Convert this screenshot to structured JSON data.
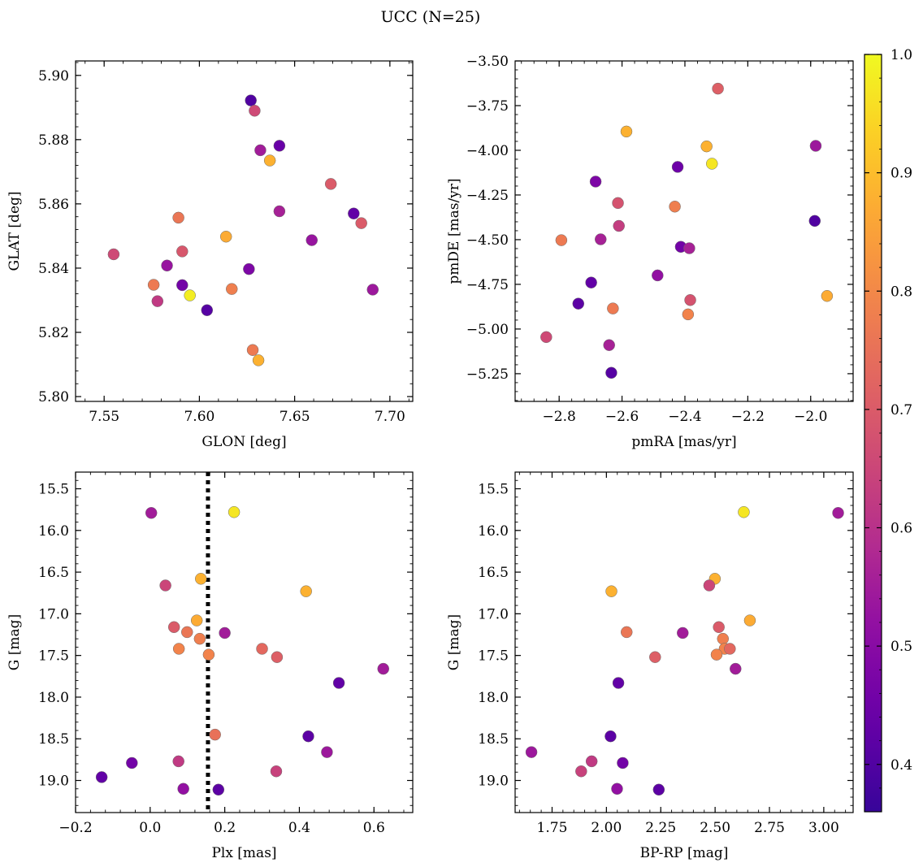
{
  "figure": {
    "suptitle": "UCC (N=25)"
  },
  "colorbar": {
    "colormap": "plasma",
    "range": [
      0.36,
      1.0
    ],
    "ticks": [
      0.4,
      0.5,
      0.6,
      0.7,
      0.8,
      0.9,
      1.0
    ],
    "tick_labels": [
      "0.4",
      "0.5",
      "0.6",
      "0.7",
      "0.8",
      "0.9",
      "1.0"
    ]
  },
  "chart_data": [
    {
      "type": "scatter",
      "id": "glon-glat",
      "xlabel": "GLON [deg]",
      "ylabel": "GLAT [deg]",
      "xlim": [
        7.535,
        7.712
      ],
      "ylim": [
        5.7985,
        5.9045
      ],
      "xticks": [
        7.55,
        7.6,
        7.65,
        7.7
      ],
      "xtick_labels": [
        "7.55",
        "7.60",
        "7.65",
        "7.70"
      ],
      "yticks": [
        5.8,
        5.82,
        5.84,
        5.86,
        5.88,
        5.9
      ],
      "ytick_labels": [
        "5.80",
        "5.82",
        "5.84",
        "5.86",
        "5.88",
        "5.90"
      ],
      "points": [
        {
          "x": 7.627,
          "y": 5.8922,
          "c": 0.4
        },
        {
          "x": 7.629,
          "y": 5.889,
          "c": 0.66
        },
        {
          "x": 7.642,
          "y": 5.8781,
          "c": 0.44
        },
        {
          "x": 7.632,
          "y": 5.8767,
          "c": 0.55
        },
        {
          "x": 7.637,
          "y": 5.8735,
          "c": 0.88
        },
        {
          "x": 7.669,
          "y": 5.8662,
          "c": 0.7
        },
        {
          "x": 7.642,
          "y": 5.8577,
          "c": 0.56
        },
        {
          "x": 7.681,
          "y": 5.857,
          "c": 0.43
        },
        {
          "x": 7.589,
          "y": 5.8557,
          "c": 0.76
        },
        {
          "x": 7.685,
          "y": 5.854,
          "c": 0.7
        },
        {
          "x": 7.614,
          "y": 5.8498,
          "c": 0.87
        },
        {
          "x": 7.659,
          "y": 5.8487,
          "c": 0.53
        },
        {
          "x": 7.591,
          "y": 5.8452,
          "c": 0.69
        },
        {
          "x": 7.555,
          "y": 5.8443,
          "c": 0.66
        },
        {
          "x": 7.583,
          "y": 5.8408,
          "c": 0.53
        },
        {
          "x": 7.626,
          "y": 5.8397,
          "c": 0.48
        },
        {
          "x": 7.576,
          "y": 5.8348,
          "c": 0.77
        },
        {
          "x": 7.591,
          "y": 5.8347,
          "c": 0.46
        },
        {
          "x": 7.617,
          "y": 5.8335,
          "c": 0.78
        },
        {
          "x": 7.691,
          "y": 5.8333,
          "c": 0.54
        },
        {
          "x": 7.595,
          "y": 5.8315,
          "c": 0.98
        },
        {
          "x": 7.578,
          "y": 5.8297,
          "c": 0.62
        },
        {
          "x": 7.604,
          "y": 5.8269,
          "c": 0.41
        },
        {
          "x": 7.628,
          "y": 5.8145,
          "c": 0.77
        },
        {
          "x": 7.631,
          "y": 5.8113,
          "c": 0.88
        }
      ]
    },
    {
      "type": "scatter",
      "id": "pmra-pmde",
      "xlabel": "pmRA [mas/yr]",
      "ylabel": "pmDE [mas/yr]",
      "xlim": [
        -2.94,
        -1.865
      ],
      "ylim": [
        -5.405,
        -3.5
      ],
      "xticks": [
        -2.8,
        -2.6,
        -2.4,
        -2.2,
        -2.0
      ],
      "xtick_labels": [
        "−2.8",
        "−2.6",
        "−2.4",
        "−2.2",
        "−2.0"
      ],
      "yticks": [
        -5.25,
        -5.0,
        -4.75,
        -4.5,
        -4.25,
        -4.0,
        -3.75,
        -3.5
      ],
      "ytick_labels": [
        "−5.25",
        "−5.00",
        "−4.75",
        "−4.50",
        "−4.25",
        "−4.00",
        "−3.75",
        "−3.50"
      ],
      "points": [
        {
          "x": -2.295,
          "y": -3.655,
          "c": 0.71
        },
        {
          "x": -2.586,
          "y": -3.895,
          "c": 0.88
        },
        {
          "x": -2.331,
          "y": -3.978,
          "c": 0.88
        },
        {
          "x": -1.984,
          "y": -3.975,
          "c": 0.54
        },
        {
          "x": -2.314,
          "y": -4.075,
          "c": 0.97
        },
        {
          "x": -2.423,
          "y": -4.093,
          "c": 0.45
        },
        {
          "x": -2.684,
          "y": -4.175,
          "c": 0.48
        },
        {
          "x": -2.613,
          "y": -4.295,
          "c": 0.68
        },
        {
          "x": -2.432,
          "y": -4.315,
          "c": 0.78
        },
        {
          "x": -2.61,
          "y": -4.423,
          "c": 0.63
        },
        {
          "x": -1.987,
          "y": -4.395,
          "c": 0.4
        },
        {
          "x": -2.793,
          "y": -4.503,
          "c": 0.77
        },
        {
          "x": -2.668,
          "y": -4.498,
          "c": 0.56
        },
        {
          "x": -2.413,
          "y": -4.54,
          "c": 0.46
        },
        {
          "x": -2.386,
          "y": -4.548,
          "c": 0.56
        },
        {
          "x": -2.487,
          "y": -4.7,
          "c": 0.52
        },
        {
          "x": -2.698,
          "y": -4.74,
          "c": 0.43
        },
        {
          "x": -2.383,
          "y": -4.838,
          "c": 0.68
        },
        {
          "x": -1.948,
          "y": -4.815,
          "c": 0.87
        },
        {
          "x": -2.739,
          "y": -4.858,
          "c": 0.42
        },
        {
          "x": -2.629,
          "y": -4.885,
          "c": 0.77
        },
        {
          "x": -2.39,
          "y": -4.918,
          "c": 0.79
        },
        {
          "x": -2.841,
          "y": -5.045,
          "c": 0.66
        },
        {
          "x": -2.641,
          "y": -5.09,
          "c": 0.56
        },
        {
          "x": -2.634,
          "y": -5.245,
          "c": 0.41
        }
      ]
    },
    {
      "type": "scatter",
      "id": "plx-g",
      "xlabel": "Plx [mas]",
      "ylabel": "G [mag]",
      "xlim": [
        -0.2,
        0.704
      ],
      "ylim": [
        19.385,
        15.3
      ],
      "xticks": [
        -0.2,
        0.0,
        0.2,
        0.4,
        0.6
      ],
      "xtick_labels": [
        "−0.2",
        "0.0",
        "0.2",
        "0.4",
        "0.6"
      ],
      "yticks": [
        15.5,
        16.0,
        16.5,
        17.0,
        17.5,
        18.0,
        18.5,
        19.0
      ],
      "ytick_labels": [
        "15.5",
        "16.0",
        "16.5",
        "17.0",
        "17.5",
        "18.0",
        "18.5",
        "19.0"
      ],
      "vline": {
        "x": 0.155
      },
      "points": [
        {
          "x": 0.003,
          "y": 15.79,
          "c": 0.55
        },
        {
          "x": 0.225,
          "y": 15.78,
          "c": 0.97
        },
        {
          "x": 0.041,
          "y": 16.66,
          "c": 0.65
        },
        {
          "x": 0.136,
          "y": 16.58,
          "c": 0.88
        },
        {
          "x": 0.418,
          "y": 16.73,
          "c": 0.88
        },
        {
          "x": 0.125,
          "y": 17.08,
          "c": 0.87
        },
        {
          "x": 0.064,
          "y": 17.16,
          "c": 0.7
        },
        {
          "x": 0.099,
          "y": 17.22,
          "c": 0.76
        },
        {
          "x": 0.2,
          "y": 17.23,
          "c": 0.55
        },
        {
          "x": 0.133,
          "y": 17.3,
          "c": 0.78
        },
        {
          "x": 0.077,
          "y": 17.42,
          "c": 0.79
        },
        {
          "x": 0.3,
          "y": 17.42,
          "c": 0.73
        },
        {
          "x": 0.157,
          "y": 17.49,
          "c": 0.79
        },
        {
          "x": 0.34,
          "y": 17.52,
          "c": 0.71
        },
        {
          "x": 0.625,
          "y": 17.66,
          "c": 0.55
        },
        {
          "x": 0.506,
          "y": 17.83,
          "c": 0.43
        },
        {
          "x": 0.174,
          "y": 18.45,
          "c": 0.75
        },
        {
          "x": 0.424,
          "y": 18.47,
          "c": 0.42
        },
        {
          "x": 0.474,
          "y": 18.66,
          "c": 0.54
        },
        {
          "x": 0.076,
          "y": 18.77,
          "c": 0.62
        },
        {
          "x": -0.049,
          "y": 18.79,
          "c": 0.46
        },
        {
          "x": 0.338,
          "y": 18.89,
          "c": 0.64
        },
        {
          "x": -0.13,
          "y": 18.96,
          "c": 0.43
        },
        {
          "x": 0.089,
          "y": 19.1,
          "c": 0.52
        },
        {
          "x": 0.183,
          "y": 19.11,
          "c": 0.42
        }
      ]
    },
    {
      "type": "scatter",
      "id": "bprp-g",
      "xlabel": "BP-RP [mag]",
      "ylabel": "G [mag]",
      "xlim": [
        1.58,
        3.135
      ],
      "ylim": [
        19.385,
        15.3
      ],
      "xticks": [
        1.75,
        2.0,
        2.25,
        2.5,
        2.75,
        3.0
      ],
      "xtick_labels": [
        "1.75",
        "2.00",
        "2.25",
        "2.50",
        "2.75",
        "3.00"
      ],
      "yticks": [
        15.5,
        16.0,
        16.5,
        17.0,
        17.5,
        18.0,
        18.5,
        19.0
      ],
      "ytick_labels": [
        "15.5",
        "16.0",
        "16.5",
        "17.0",
        "17.5",
        "18.0",
        "18.5",
        "19.0"
      ],
      "points": [
        {
          "x": 2.632,
          "y": 15.78,
          "c": 0.97
        },
        {
          "x": 3.066,
          "y": 15.79,
          "c": 0.55
        },
        {
          "x": 2.499,
          "y": 16.58,
          "c": 0.88
        },
        {
          "x": 2.473,
          "y": 16.66,
          "c": 0.65
        },
        {
          "x": 2.023,
          "y": 16.73,
          "c": 0.88
        },
        {
          "x": 2.66,
          "y": 17.08,
          "c": 0.87
        },
        {
          "x": 2.517,
          "y": 17.16,
          "c": 0.7
        },
        {
          "x": 2.093,
          "y": 17.22,
          "c": 0.76
        },
        {
          "x": 2.351,
          "y": 17.23,
          "c": 0.55
        },
        {
          "x": 2.536,
          "y": 17.3,
          "c": 0.78
        },
        {
          "x": 2.544,
          "y": 17.42,
          "c": 0.79
        },
        {
          "x": 2.568,
          "y": 17.42,
          "c": 0.73
        },
        {
          "x": 2.507,
          "y": 17.49,
          "c": 0.79
        },
        {
          "x": 2.224,
          "y": 17.52,
          "c": 0.71
        },
        {
          "x": 2.594,
          "y": 17.66,
          "c": 0.55
        },
        {
          "x": 2.055,
          "y": 17.83,
          "c": 0.43
        },
        {
          "x": 2.019,
          "y": 18.47,
          "c": 0.42
        },
        {
          "x": 1.655,
          "y": 18.66,
          "c": 0.54
        },
        {
          "x": 1.932,
          "y": 18.77,
          "c": 0.62
        },
        {
          "x": 2.075,
          "y": 18.79,
          "c": 0.46
        },
        {
          "x": 1.884,
          "y": 18.89,
          "c": 0.64
        },
        {
          "x": 2.049,
          "y": 19.1,
          "c": 0.52
        },
        {
          "x": 2.241,
          "y": 19.11,
          "c": 0.42
        }
      ]
    }
  ]
}
